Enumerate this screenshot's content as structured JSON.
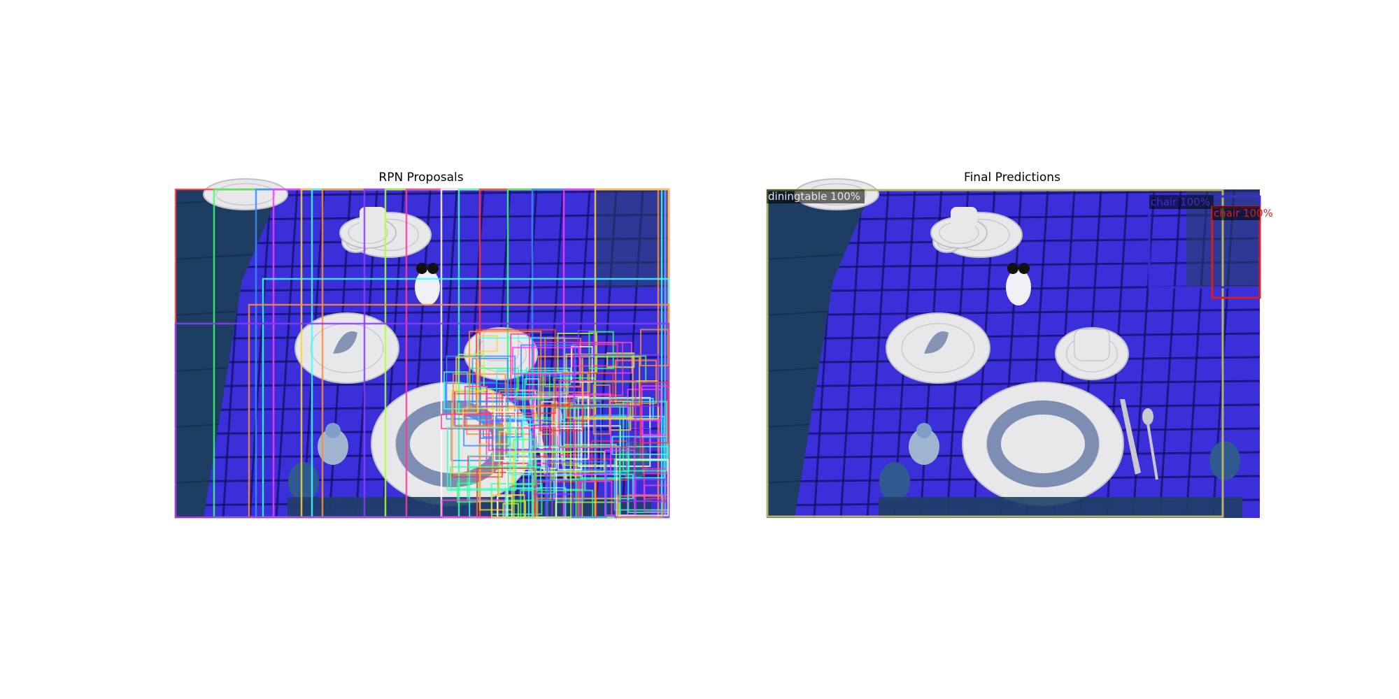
{
  "figure": {
    "left_title": "RPN Proposals",
    "right_title": "Final Predictions"
  },
  "scene": {
    "tablecloth_color": "#3a2fd8",
    "plaid_dark_color": "#14106a",
    "floor_color": "#1e3d63",
    "plate_color": "#e8e8ea",
    "wreath_color": "#6b7ea8",
    "chair_knob_color": "#2f5a8f"
  },
  "rpn": {
    "box_colors": [
      "#ff3b3b",
      "#3bff6b",
      "#3b8bff",
      "#ff3bff",
      "#ffd23b",
      "#3bffff",
      "#ff8b3b",
      "#8b3bff",
      "#b0ff3b",
      "#ff3b9c",
      "#ffffff",
      "#3bffb0"
    ]
  },
  "predictions": [
    {
      "label": "diningtable 100%",
      "color": "#b5b36a"
    },
    {
      "label": "chair 100%",
      "color": "#3b2fd0"
    },
    {
      "label": "chair 100%",
      "color": "#d21f1f"
    }
  ]
}
